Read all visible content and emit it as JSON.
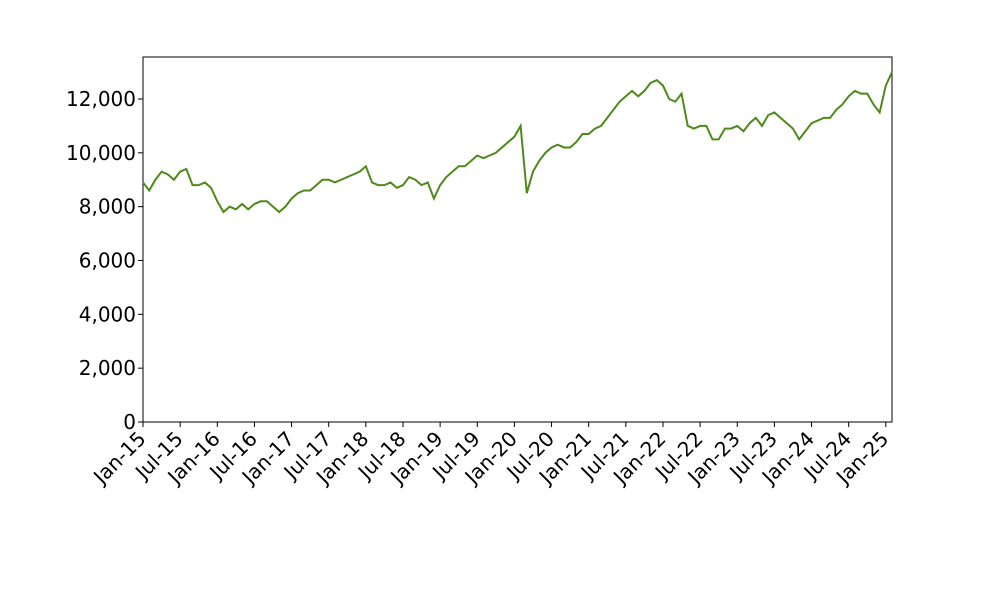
{
  "chart_data": {
    "type": "line",
    "x": [
      "2015-01",
      "2015-02",
      "2015-03",
      "2015-04",
      "2015-05",
      "2015-06",
      "2015-07",
      "2015-08",
      "2015-09",
      "2015-10",
      "2015-11",
      "2015-12",
      "2016-01",
      "2016-02",
      "2016-03",
      "2016-04",
      "2016-05",
      "2016-06",
      "2016-07",
      "2016-08",
      "2016-09",
      "2016-10",
      "2016-11",
      "2016-12",
      "2017-01",
      "2017-02",
      "2017-03",
      "2017-04",
      "2017-05",
      "2017-06",
      "2017-07",
      "2017-08",
      "2017-09",
      "2017-10",
      "2017-11",
      "2017-12",
      "2018-01",
      "2018-02",
      "2018-03",
      "2018-04",
      "2018-05",
      "2018-06",
      "2018-07",
      "2018-08",
      "2018-09",
      "2018-10",
      "2018-11",
      "2018-12",
      "2019-01",
      "2019-02",
      "2019-03",
      "2019-04",
      "2019-05",
      "2019-06",
      "2019-07",
      "2019-08",
      "2019-09",
      "2019-10",
      "2019-11",
      "2019-12",
      "2020-01",
      "2020-02",
      "2020-03",
      "2020-04",
      "2020-05",
      "2020-06",
      "2020-07",
      "2020-08",
      "2020-09",
      "2020-10",
      "2020-11",
      "2020-12",
      "2021-01",
      "2021-02",
      "2021-03",
      "2021-04",
      "2021-05",
      "2021-06",
      "2021-07",
      "2021-08",
      "2021-09",
      "2021-10",
      "2021-11",
      "2021-12",
      "2022-01",
      "2022-02",
      "2022-03",
      "2022-04",
      "2022-05",
      "2022-06",
      "2022-07",
      "2022-08",
      "2022-09",
      "2022-10",
      "2022-11",
      "2022-12",
      "2023-01",
      "2023-02",
      "2023-03",
      "2023-04",
      "2023-05",
      "2023-06",
      "2023-07",
      "2023-08",
      "2023-09",
      "2023-10",
      "2023-11",
      "2023-12",
      "2024-01",
      "2024-02",
      "2024-03",
      "2024-04",
      "2024-05",
      "2024-06",
      "2024-07",
      "2024-08",
      "2024-09",
      "2024-10",
      "2024-11",
      "2024-12",
      "2025-01",
      "2025-02"
    ],
    "series": [
      {
        "color": "#4e8a1a",
        "values": [
          8900,
          8600,
          9000,
          9300,
          9200,
          9000,
          9300,
          9400,
          8800,
          8800,
          8900,
          8700,
          8200,
          7800,
          8000,
          7900,
          8100,
          7900,
          8100,
          8200,
          8200,
          8000,
          7800,
          8000,
          8300,
          8500,
          8600,
          8600,
          8800,
          9000,
          9000,
          8900,
          9000,
          9100,
          9200,
          9300,
          9500,
          8900,
          8800,
          8800,
          8900,
          8700,
          8800,
          9100,
          9000,
          8800,
          8900,
          8300,
          8800,
          9100,
          9300,
          9500,
          9500,
          9700,
          9900,
          9800,
          9900,
          10000,
          10200,
          10400,
          10600,
          11000,
          8500,
          9300,
          9700,
          10000,
          10200,
          10300,
          10200,
          10200,
          10400,
          10700,
          10700,
          10900,
          11000,
          11300,
          11600,
          11900,
          12100,
          12300,
          12100,
          12300,
          12600,
          12700,
          12500,
          12000,
          11900,
          12200,
          11000,
          10900,
          11000,
          11000,
          10500,
          10500,
          10900,
          10900,
          11000,
          10800,
          11100,
          11300,
          11000,
          11400,
          11500,
          11300,
          11100,
          10900,
          10500,
          10800,
          11100,
          11200,
          11300,
          11300,
          11600,
          11800,
          12100,
          12300,
          12200,
          12200,
          11800,
          11500,
          12500,
          13000
        ]
      }
    ],
    "xlim": [
      "2015-01",
      "2025-02"
    ],
    "xticks": [
      {
        "value": "2015-01",
        "label": "Jan-15"
      },
      {
        "value": "2015-07",
        "label": "Jul-15"
      },
      {
        "value": "2016-01",
        "label": "Jan-16"
      },
      {
        "value": "2016-07",
        "label": "Jul-16"
      },
      {
        "value": "2017-01",
        "label": "Jan-17"
      },
      {
        "value": "2017-07",
        "label": "Jul-17"
      },
      {
        "value": "2018-01",
        "label": "Jan-18"
      },
      {
        "value": "2018-07",
        "label": "Jul-18"
      },
      {
        "value": "2019-01",
        "label": "Jan-19"
      },
      {
        "value": "2019-07",
        "label": "Jul-19"
      },
      {
        "value": "2020-01",
        "label": "Jan-20"
      },
      {
        "value": "2020-07",
        "label": "Jul-20"
      },
      {
        "value": "2021-01",
        "label": "Jan-21"
      },
      {
        "value": "2021-07",
        "label": "Jul-21"
      },
      {
        "value": "2022-01",
        "label": "Jan-22"
      },
      {
        "value": "2022-07",
        "label": "Jul-22"
      },
      {
        "value": "2023-01",
        "label": "Jan-23"
      },
      {
        "value": "2023-07",
        "label": "Jul-23"
      },
      {
        "value": "2024-01",
        "label": "Jan-24"
      },
      {
        "value": "2024-07",
        "label": "Jul-24"
      },
      {
        "value": "2025-01",
        "label": "Jan-25"
      }
    ],
    "ylim": [
      0,
      13560
    ],
    "yticks": [
      0,
      {
        "value": 2000,
        "label": "2,000"
      },
      {
        "value": 4000,
        "label": "4,000"
      },
      {
        "value": 6000,
        "label": "6,000"
      },
      {
        "value": 8000,
        "label": "8,000"
      },
      {
        "value": 10000,
        "label": "10,000"
      },
      {
        "value": 12000,
        "label": "12,000"
      }
    ],
    "grid": false
  }
}
